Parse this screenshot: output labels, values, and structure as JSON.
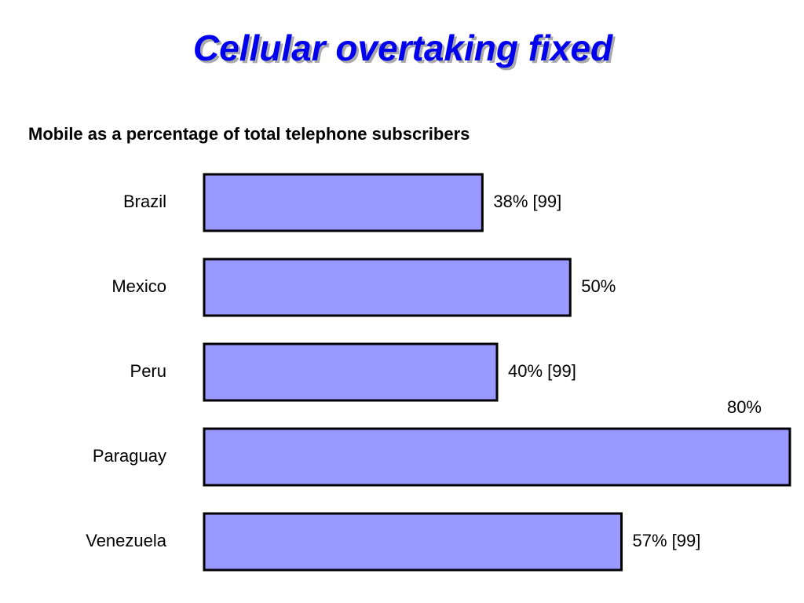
{
  "chart_data": {
    "type": "hbar",
    "title": "Cellular overtaking fixed",
    "subtitle": "Mobile as a percentage of total telephone subscribers",
    "categories": [
      "Brazil",
      "Mexico",
      "Peru",
      "Paraguay",
      "Venezuela"
    ],
    "values": [
      38,
      50,
      40,
      80,
      57
    ],
    "value_labels": [
      "38% [99]",
      "50%",
      "40% [99]",
      "80%",
      "57% [99]"
    ],
    "color": "#9999ff"
  }
}
